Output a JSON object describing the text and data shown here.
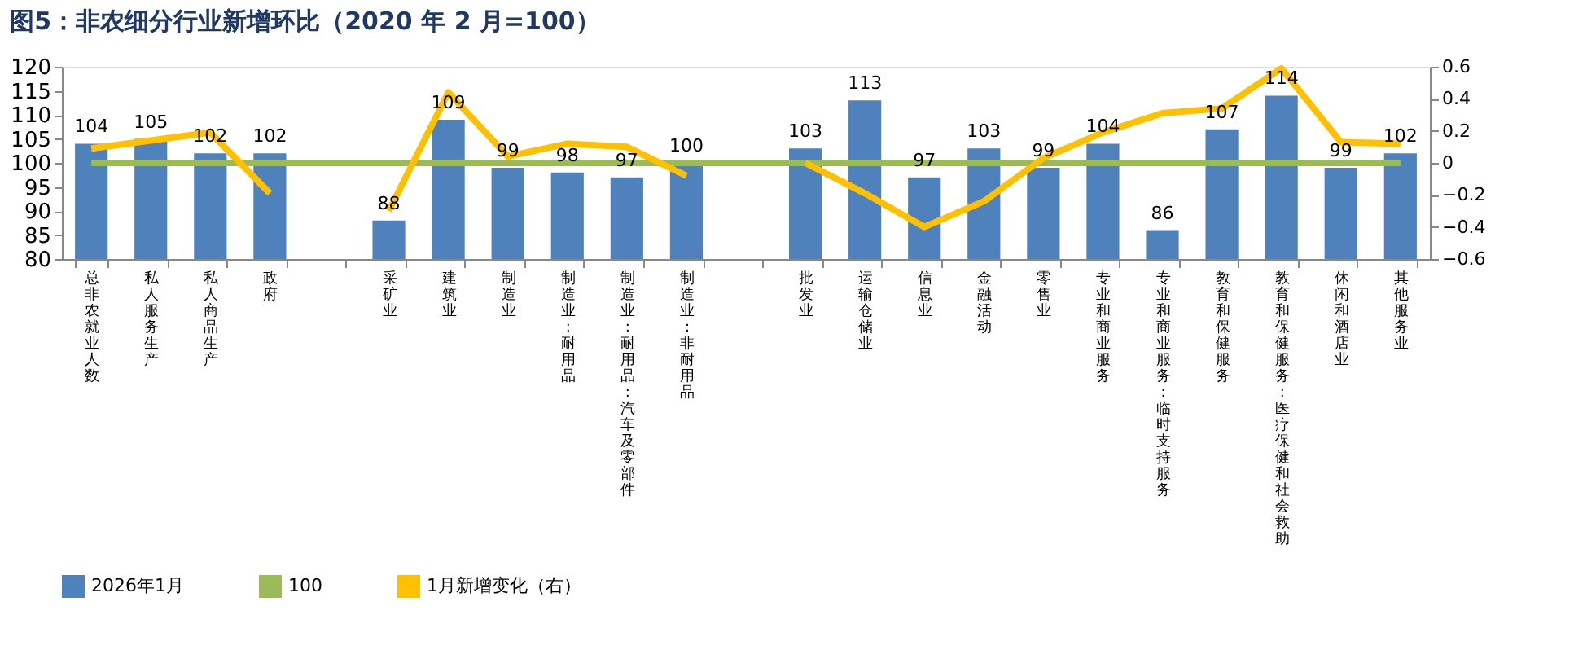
{
  "chart_data": {
    "type": "bar",
    "title": "图5：非农细分行业新增环比（2020 年 2 月=100）",
    "categories": [
      "总非农就业人数",
      "私人服务生产",
      "私人商品生产",
      "政府",
      null,
      "采矿业",
      "建筑业",
      "制造业",
      "制造业:耐用品",
      "制造业:耐用品:汽车及零部件",
      "制造业:非耐用品",
      null,
      "批发业",
      "运输仓储业",
      "信息业",
      "金融活动",
      "零售业",
      "专业和商业服务",
      "专业和商业服务:临时支持服务",
      "教育和保健服务",
      "教育和保健服务:医疗保健和社会救助",
      "休闲和酒店业",
      "其他服务业"
    ],
    "series": [
      {
        "name": "2026年1月",
        "color": "#4f81bd",
        "values": [
          104,
          105,
          102,
          102,
          null,
          88,
          109,
          99,
          98,
          97,
          100,
          null,
          103,
          113,
          97,
          103,
          99,
          104,
          86,
          107,
          114,
          99,
          102
        ],
        "value_labels": [
          "104",
          "105",
          "102",
          "102",
          null,
          "88",
          "109",
          "99",
          "98",
          "97",
          "100",
          null,
          "103",
          "113",
          "97",
          "103",
          "99",
          "104",
          "86",
          "107",
          "114",
          "99",
          "102"
        ]
      },
      {
        "name": "100",
        "type": "line",
        "color": "#9bbb59",
        "values": [
          100,
          100,
          100,
          100,
          100,
          100,
          100,
          100,
          100,
          100,
          100,
          100,
          100,
          100,
          100,
          100,
          100,
          100,
          100,
          100,
          100,
          100,
          100
        ]
      },
      {
        "name": "1月新增变化（右）",
        "type": "line",
        "axis": "y2",
        "color": "#ffc000",
        "values": [
          0.09,
          0.14,
          0.19,
          -0.19,
          null,
          -0.3,
          0.44,
          0.04,
          0.12,
          0.1,
          -0.08,
          null,
          0.0,
          -0.19,
          -0.4,
          -0.24,
          0.03,
          0.19,
          0.31,
          0.34,
          0.59,
          0.13,
          0.12
        ]
      }
    ],
    "ylim": [
      80,
      120
    ],
    "yticks": [
      80,
      85,
      90,
      95,
      100,
      105,
      110,
      115,
      120
    ],
    "y2lim": [
      -0.6,
      0.6
    ],
    "y2ticks": [
      -0.6,
      -0.4,
      -0.2,
      {
        "value": 0,
        "label": "0"
      },
      0.2,
      0.4,
      0.6
    ],
    "legend": "bottom",
    "grid": false,
    "marker": "none",
    "line_style": "solid"
  }
}
